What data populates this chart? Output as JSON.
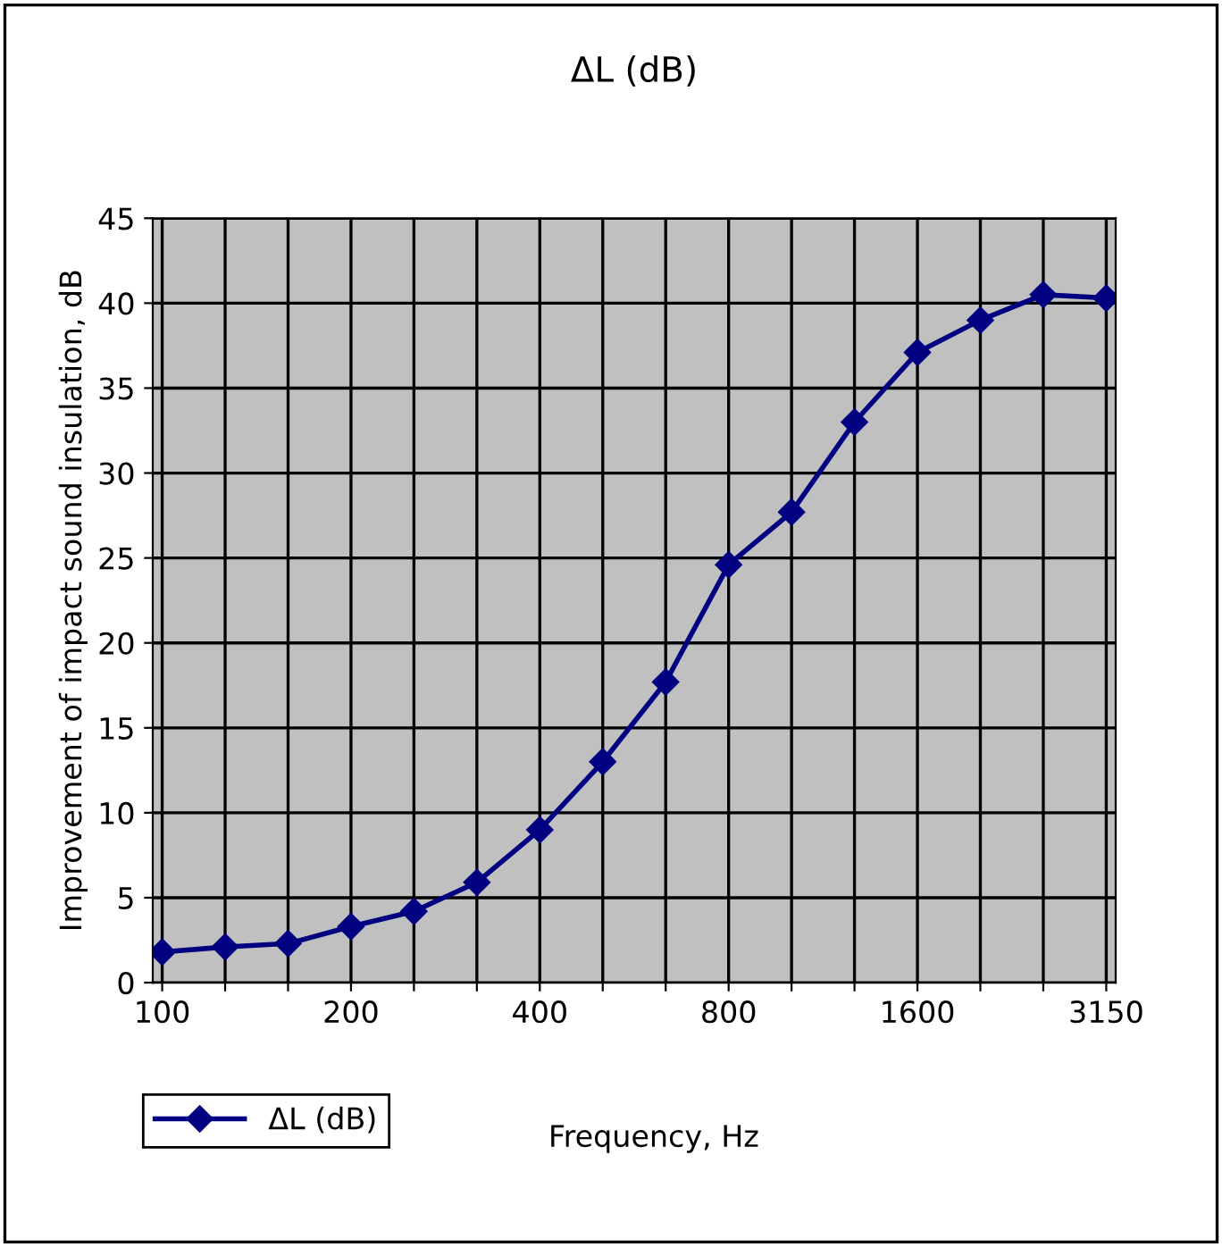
{
  "chart_data": {
    "type": "line",
    "title": "ΔL (dB)",
    "xlabel": "Frequency, Hz",
    "ylabel": "Improvement of impact sound insulation, dB",
    "categories": [
      "100",
      null,
      null,
      "200",
      null,
      null,
      "400",
      null,
      null,
      "800",
      null,
      null,
      "1600",
      null,
      null,
      "3150"
    ],
    "series": [
      {
        "name": "ΔL (dB)",
        "color": "#000080",
        "values": [
          1.8,
          2.1,
          2.3,
          3.3,
          4.2,
          5.9,
          9.0,
          13.0,
          17.7,
          24.6,
          27.7,
          33.0,
          37.1,
          39.0,
          40.5,
          40.3
        ]
      }
    ],
    "ylim": [
      0,
      45
    ],
    "yticks": [
      0,
      5,
      10,
      15,
      20,
      25,
      30,
      35,
      40,
      45
    ],
    "grid": true,
    "legend": "bottom left",
    "marker": "diamond",
    "line_style": "solid"
  }
}
